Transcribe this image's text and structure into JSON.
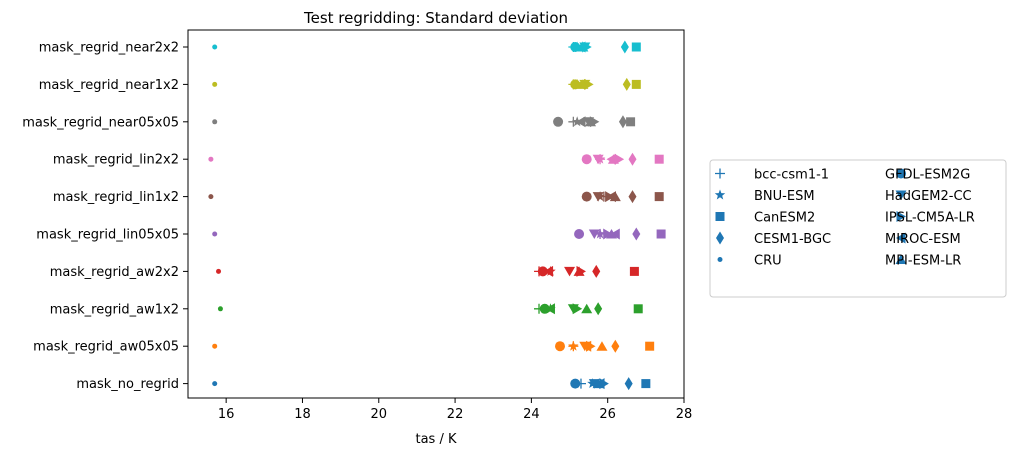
{
  "chart_data": {
    "type": "scatter",
    "title": "Test regridding: Standard deviation",
    "xlabel": "tas / K",
    "ylabel": "",
    "xlim": [
      15,
      28
    ],
    "xticks": [
      16,
      18,
      20,
      22,
      24,
      26,
      28
    ],
    "grid": false,
    "legend_position": "right",
    "categories": [
      "mask_no_regrid",
      "mask_regrid_aw05x05",
      "mask_regrid_aw1x2",
      "mask_regrid_aw2x2",
      "mask_regrid_lin05x05",
      "mask_regrid_lin1x2",
      "mask_regrid_lin2x2",
      "mask_regrid_near05x05",
      "mask_regrid_near1x2",
      "mask_regrid_near2x2"
    ],
    "category_colors": [
      "#1f77b4",
      "#ff7f0e",
      "#2ca02c",
      "#d62728",
      "#9467bd",
      "#8c564b",
      "#e377c2",
      "#7f7f7f",
      "#bcbd22",
      "#17becf"
    ],
    "series": [
      {
        "name": "bcc-csm1-1",
        "marker": "plus",
        "values": [
          25.3,
          25.1,
          24.2,
          24.2,
          25.8,
          25.9,
          25.8,
          25.1,
          25.1,
          25.1
        ]
      },
      {
        "name": "BNU-ESM",
        "marker": "star",
        "values": [
          25.6,
          25.1,
          24.5,
          24.5,
          25.8,
          25.8,
          25.8,
          25.2,
          25.2,
          25.2
        ]
      },
      {
        "name": "CanESM2",
        "marker": "square",
        "values": [
          27.0,
          27.1,
          26.8,
          26.7,
          27.4,
          27.35,
          27.35,
          26.6,
          26.75,
          26.75
        ]
      },
      {
        "name": "CESM1-BGC",
        "marker": "diamond",
        "values": [
          26.55,
          26.2,
          25.75,
          25.7,
          26.75,
          26.65,
          26.65,
          26.4,
          26.5,
          26.45
        ]
      },
      {
        "name": "CRU",
        "marker": "dot",
        "values": [
          15.7,
          15.7,
          15.85,
          15.8,
          15.7,
          15.6,
          15.6,
          15.7,
          15.7,
          15.7
        ]
      },
      {
        "name": "GFDL-ESM2G",
        "marker": "circle",
        "values": [
          25.15,
          24.75,
          24.35,
          24.3,
          25.25,
          25.45,
          25.45,
          24.7,
          25.15,
          25.15
        ]
      },
      {
        "name": "HadGEM2-CC",
        "marker": "triangle-down",
        "values": [
          25.65,
          25.4,
          25.1,
          25.0,
          25.65,
          25.75,
          25.75,
          25.5,
          25.4,
          25.4
        ]
      },
      {
        "name": "IPSL-CM5A-LR",
        "marker": "triangle-right",
        "values": [
          25.9,
          25.55,
          25.2,
          25.3,
          26.0,
          26.05,
          26.3,
          25.65,
          25.5,
          25.45
        ]
      },
      {
        "name": "MIROC-ESM",
        "marker": "triangle-left",
        "values": [
          25.8,
          25.45,
          24.5,
          24.45,
          26.2,
          26.1,
          26.1,
          25.3,
          25.3,
          25.3
        ]
      },
      {
        "name": "MPI-ESM-LR",
        "marker": "triangle-up",
        "values": [
          25.75,
          25.85,
          25.45,
          25.25,
          26.1,
          26.2,
          26.15,
          25.55,
          25.35,
          25.35
        ]
      }
    ],
    "legend_columns": [
      [
        "bcc-csm1-1",
        "BNU-ESM",
        "CanESM2",
        "CESM1-BGC",
        "CRU"
      ],
      [
        "GFDL-ESM2G",
        "HadGEM2-CC",
        "IPSL-CM5A-LR",
        "MIROC-ESM",
        "MPI-ESM-LR"
      ]
    ],
    "legend_marker_color": "#1f77b4"
  }
}
